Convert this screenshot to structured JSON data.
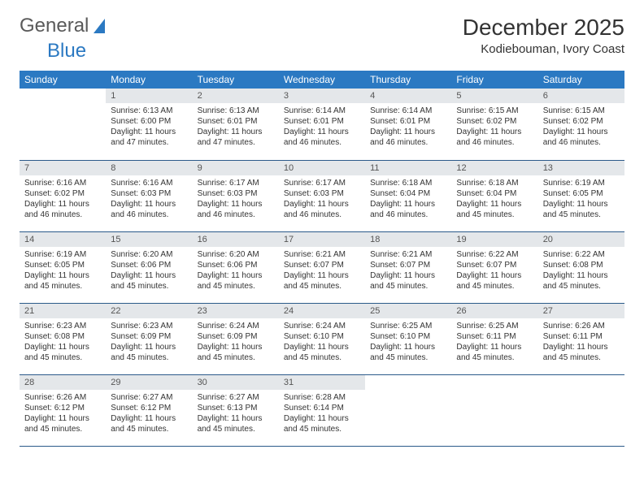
{
  "logo": {
    "text1": "General",
    "text2": "Blue"
  },
  "header": {
    "month": "December 2025",
    "location": "Kodiebouman, Ivory Coast"
  },
  "colors": {
    "brand_blue": "#2b79c2",
    "header_text": "#ffffff",
    "day_bg": "#e4e7ea",
    "border": "#2b5a8a",
    "text": "#333333",
    "logo_gray": "#5a5a5a"
  },
  "weekdays": [
    "Sunday",
    "Monday",
    "Tuesday",
    "Wednesday",
    "Thursday",
    "Friday",
    "Saturday"
  ],
  "calendar": {
    "first_weekday_index": 1,
    "days": [
      {
        "n": 1,
        "sunrise": "6:13 AM",
        "sunset": "6:00 PM",
        "daylight": "11 hours and 47 minutes."
      },
      {
        "n": 2,
        "sunrise": "6:13 AM",
        "sunset": "6:01 PM",
        "daylight": "11 hours and 47 minutes."
      },
      {
        "n": 3,
        "sunrise": "6:14 AM",
        "sunset": "6:01 PM",
        "daylight": "11 hours and 46 minutes."
      },
      {
        "n": 4,
        "sunrise": "6:14 AM",
        "sunset": "6:01 PM",
        "daylight": "11 hours and 46 minutes."
      },
      {
        "n": 5,
        "sunrise": "6:15 AM",
        "sunset": "6:02 PM",
        "daylight": "11 hours and 46 minutes."
      },
      {
        "n": 6,
        "sunrise": "6:15 AM",
        "sunset": "6:02 PM",
        "daylight": "11 hours and 46 minutes."
      },
      {
        "n": 7,
        "sunrise": "6:16 AM",
        "sunset": "6:02 PM",
        "daylight": "11 hours and 46 minutes."
      },
      {
        "n": 8,
        "sunrise": "6:16 AM",
        "sunset": "6:03 PM",
        "daylight": "11 hours and 46 minutes."
      },
      {
        "n": 9,
        "sunrise": "6:17 AM",
        "sunset": "6:03 PM",
        "daylight": "11 hours and 46 minutes."
      },
      {
        "n": 10,
        "sunrise": "6:17 AM",
        "sunset": "6:03 PM",
        "daylight": "11 hours and 46 minutes."
      },
      {
        "n": 11,
        "sunrise": "6:18 AM",
        "sunset": "6:04 PM",
        "daylight": "11 hours and 46 minutes."
      },
      {
        "n": 12,
        "sunrise": "6:18 AM",
        "sunset": "6:04 PM",
        "daylight": "11 hours and 45 minutes."
      },
      {
        "n": 13,
        "sunrise": "6:19 AM",
        "sunset": "6:05 PM",
        "daylight": "11 hours and 45 minutes."
      },
      {
        "n": 14,
        "sunrise": "6:19 AM",
        "sunset": "6:05 PM",
        "daylight": "11 hours and 45 minutes."
      },
      {
        "n": 15,
        "sunrise": "6:20 AM",
        "sunset": "6:06 PM",
        "daylight": "11 hours and 45 minutes."
      },
      {
        "n": 16,
        "sunrise": "6:20 AM",
        "sunset": "6:06 PM",
        "daylight": "11 hours and 45 minutes."
      },
      {
        "n": 17,
        "sunrise": "6:21 AM",
        "sunset": "6:07 PM",
        "daylight": "11 hours and 45 minutes."
      },
      {
        "n": 18,
        "sunrise": "6:21 AM",
        "sunset": "6:07 PM",
        "daylight": "11 hours and 45 minutes."
      },
      {
        "n": 19,
        "sunrise": "6:22 AM",
        "sunset": "6:07 PM",
        "daylight": "11 hours and 45 minutes."
      },
      {
        "n": 20,
        "sunrise": "6:22 AM",
        "sunset": "6:08 PM",
        "daylight": "11 hours and 45 minutes."
      },
      {
        "n": 21,
        "sunrise": "6:23 AM",
        "sunset": "6:08 PM",
        "daylight": "11 hours and 45 minutes."
      },
      {
        "n": 22,
        "sunrise": "6:23 AM",
        "sunset": "6:09 PM",
        "daylight": "11 hours and 45 minutes."
      },
      {
        "n": 23,
        "sunrise": "6:24 AM",
        "sunset": "6:09 PM",
        "daylight": "11 hours and 45 minutes."
      },
      {
        "n": 24,
        "sunrise": "6:24 AM",
        "sunset": "6:10 PM",
        "daylight": "11 hours and 45 minutes."
      },
      {
        "n": 25,
        "sunrise": "6:25 AM",
        "sunset": "6:10 PM",
        "daylight": "11 hours and 45 minutes."
      },
      {
        "n": 26,
        "sunrise": "6:25 AM",
        "sunset": "6:11 PM",
        "daylight": "11 hours and 45 minutes."
      },
      {
        "n": 27,
        "sunrise": "6:26 AM",
        "sunset": "6:11 PM",
        "daylight": "11 hours and 45 minutes."
      },
      {
        "n": 28,
        "sunrise": "6:26 AM",
        "sunset": "6:12 PM",
        "daylight": "11 hours and 45 minutes."
      },
      {
        "n": 29,
        "sunrise": "6:27 AM",
        "sunset": "6:12 PM",
        "daylight": "11 hours and 45 minutes."
      },
      {
        "n": 30,
        "sunrise": "6:27 AM",
        "sunset": "6:13 PM",
        "daylight": "11 hours and 45 minutes."
      },
      {
        "n": 31,
        "sunrise": "6:28 AM",
        "sunset": "6:14 PM",
        "daylight": "11 hours and 45 minutes."
      }
    ]
  },
  "labels": {
    "sunrise": "Sunrise:",
    "sunset": "Sunset:",
    "daylight": "Daylight:"
  }
}
